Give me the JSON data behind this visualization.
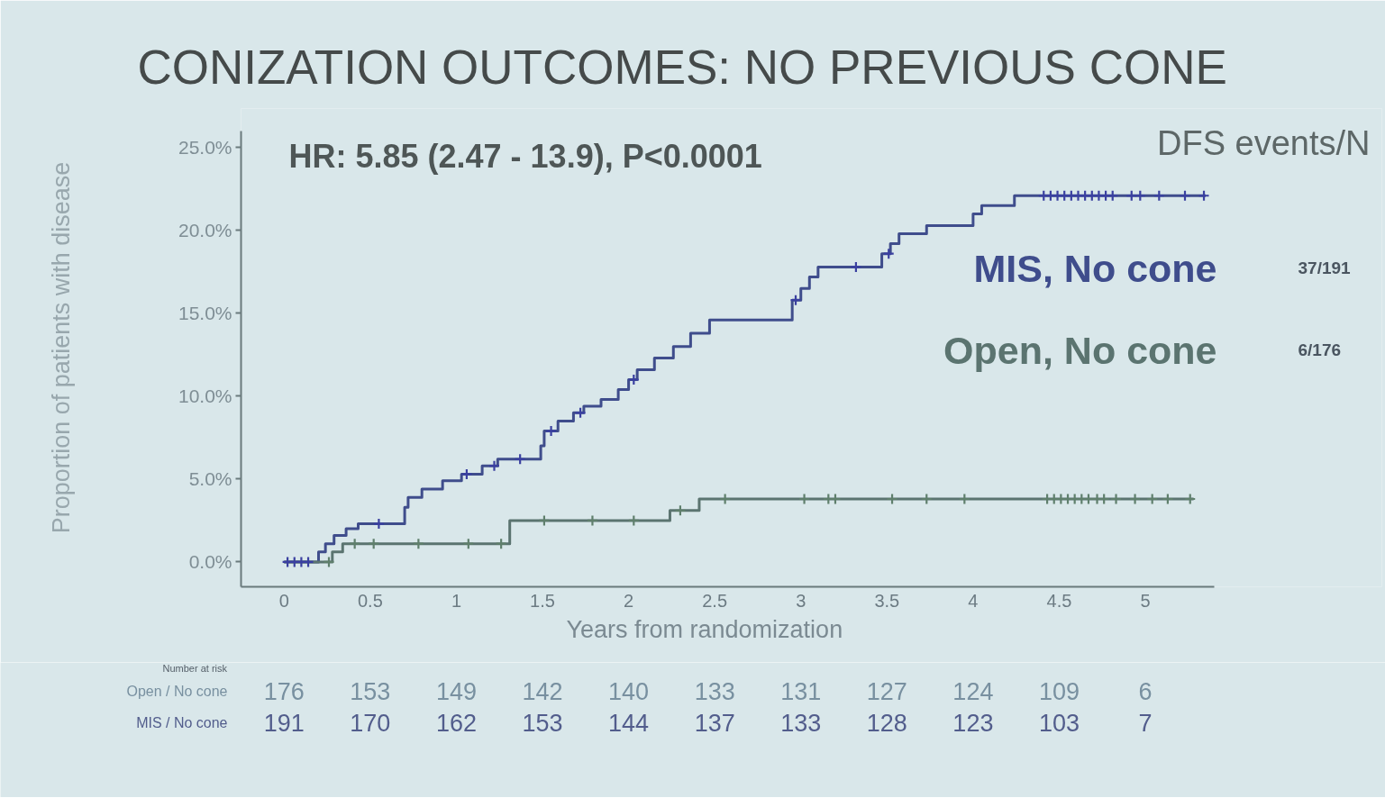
{
  "chart_data": [
    {
      "type": "step",
      "title": "CONIZATION OUTCOMES: NO PREVIOUS CONE",
      "xlabel": "Years from randomization",
      "ylabel": "Proportion of patients with disease",
      "legend_title": "DFS events/N",
      "legend": "top right",
      "grid": false,
      "annotations": [
        "HR: 5.85 (2.47 - 13.9), P<0.0001",
        "37/191",
        "6/176"
      ],
      "xlim": [
        -0.25,
        5.4
      ],
      "ylim": [
        -1.5,
        26
      ],
      "xticks": [
        0,
        0.5,
        1,
        1.5,
        2,
        2.5,
        3,
        3.5,
        4,
        4.5,
        5
      ],
      "yticks": [
        {
          "value": 0,
          "label": "0.0%"
        },
        {
          "value": 5,
          "label": "5.0%"
        },
        {
          "value": 10,
          "label": "10.0%"
        },
        {
          "value": 15,
          "label": "15.0%"
        },
        {
          "value": 20,
          "label": "20.0%"
        },
        {
          "value": 25,
          "label": "25.0%"
        }
      ],
      "series": [
        {
          "name": "MIS, No cone",
          "color": "#3f4d8c",
          "x": [
            0,
            0.2,
            0.24,
            0.29,
            0.36,
            0.43,
            0.7,
            0.72,
            0.8,
            0.92,
            1.03,
            1.15,
            1.24,
            1.49,
            1.51,
            1.59,
            1.68,
            1.74,
            1.84,
            1.94,
            2.0,
            2.05,
            2.15,
            2.26,
            2.36,
            2.47,
            2.95,
            3.0,
            3.05,
            3.1,
            3.47,
            3.52,
            3.57,
            3.73,
            4.0,
            4.05,
            4.24,
            5.35
          ],
          "values": [
            0,
            0.6,
            1.1,
            1.6,
            2.0,
            2.3,
            3.3,
            3.9,
            4.4,
            4.9,
            5.3,
            5.8,
            6.2,
            7.0,
            7.9,
            8.5,
            9.0,
            9.4,
            9.8,
            10.4,
            11.0,
            11.6,
            12.3,
            13.0,
            13.8,
            14.6,
            15.8,
            16.5,
            17.2,
            17.8,
            18.6,
            19.2,
            19.8,
            20.3,
            21.0,
            21.5,
            22.1,
            22.1
          ]
        },
        {
          "name": "Open, No cone",
          "color": "#5b7470",
          "x": [
            0,
            0.28,
            0.34,
            1.31,
            2.24,
            2.41,
            5.28
          ],
          "values": [
            0,
            0.6,
            1.1,
            2.5,
            3.1,
            3.8,
            3.8
          ]
        },
        {
          "type": "scatter",
          "marker": "cross",
          "color": "#3a40a0",
          "x": [
            0.02,
            0.06,
            0.1,
            0.14,
            0.55,
            1.06,
            1.22,
            1.37,
            1.55,
            1.72,
            2.03,
            2.97,
            3.32,
            3.51,
            4.41,
            4.45,
            4.49,
            4.53,
            4.57,
            4.61,
            4.65,
            4.69,
            4.73,
            4.77,
            4.81,
            4.92,
            4.97,
            5.08,
            5.23,
            5.34
          ],
          "values": [
            0,
            0,
            0,
            0,
            2.3,
            5.3,
            5.8,
            6.2,
            7.9,
            9.0,
            11.0,
            15.8,
            17.8,
            18.6,
            22.1,
            22.1,
            22.1,
            22.1,
            22.1,
            22.1,
            22.1,
            22.1,
            22.1,
            22.1,
            22.1,
            22.1,
            22.1,
            22.1,
            22.1,
            22.1
          ]
        },
        {
          "type": "scatter",
          "marker": "cross",
          "color": "#5f7f6c",
          "x": [
            0.26,
            0.41,
            0.52,
            0.78,
            1.07,
            1.26,
            1.51,
            1.79,
            2.03,
            2.3,
            2.56,
            3.02,
            3.16,
            3.2,
            3.53,
            3.73,
            3.95,
            4.43,
            4.47,
            4.51,
            4.55,
            4.59,
            4.63,
            4.67,
            4.72,
            4.76,
            4.83,
            4.94,
            5.04,
            5.13,
            5.26
          ],
          "values": [
            0,
            1.1,
            1.1,
            1.1,
            1.1,
            1.1,
            2.5,
            2.5,
            2.5,
            3.1,
            3.8,
            3.8,
            3.8,
            3.8,
            3.8,
            3.8,
            3.8,
            3.8,
            3.8,
            3.8,
            3.8,
            3.8,
            3.8,
            3.8,
            3.8,
            3.8,
            3.8,
            3.8,
            3.8,
            3.8,
            3.8
          ]
        }
      ]
    },
    {
      "type": "other",
      "title": "Number at risk",
      "annotations": [
        "Open / No cone",
        "176",
        "153",
        "149",
        "142",
        "140",
        "133",
        "131",
        "127",
        "124",
        "109",
        "6",
        "MIS / No cone",
        "191",
        "170",
        "162",
        "153",
        "144",
        "137",
        "133",
        "128",
        "123",
        "103",
        "7"
      ]
    }
  ]
}
